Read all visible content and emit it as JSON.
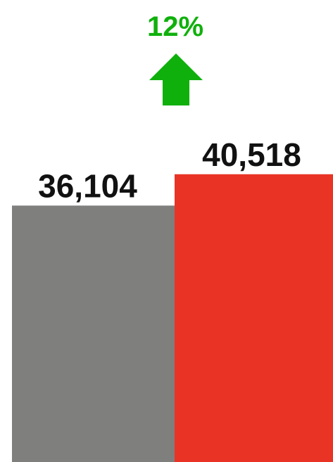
{
  "chart_data": {
    "type": "bar",
    "categories": [
      "",
      ""
    ],
    "values": [
      36104,
      40518
    ],
    "value_labels": [
      "36,104",
      "40,518"
    ],
    "colors": [
      "#7f7f7e",
      "#e93325"
    ],
    "title": "",
    "xlabel": "",
    "ylabel": "",
    "grid": false,
    "legend": "none",
    "change": {
      "label": "12%",
      "direction": "up",
      "color": "#10b00c",
      "icon": "up-arrow-icon"
    }
  }
}
